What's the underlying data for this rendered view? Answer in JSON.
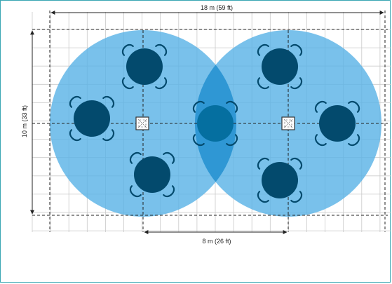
{
  "dimensions": {
    "width_label": "18 m (59 ft)",
    "height_label": "10 m (33 ft)",
    "spacing_label": "8 m (26 ft)"
  },
  "colors": {
    "grid": "#c9c9c9",
    "coverage": "#5cb3e6",
    "overlap": "#2f97d4",
    "table": "#034a6d",
    "table_highlight": "#056fa0",
    "chair_stroke": "#034a6d",
    "device_stroke": "#333333",
    "line": "#222222"
  },
  "icons": {
    "device": "ceiling-microphone-icon",
    "table": "round-table-with-chairs-icon"
  }
}
